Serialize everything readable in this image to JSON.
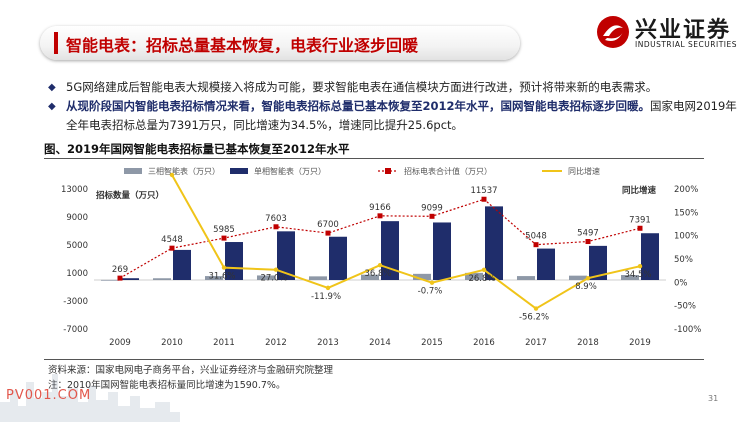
{
  "header": {
    "title": "智能电表：招标总量基本恢复，电表行业逐步回暖",
    "logo_cn": "兴业证券",
    "logo_en": "INDUSTRIAL SECURITIES"
  },
  "bullets": [
    {
      "plain": "5G网络建成后智能电表大规模接入将成为可能，要求智能电表在通信模块方面进行改进，预计将带来新的电表需求。"
    },
    {
      "bold": "从现阶段国内智能电表招标情况来看，智能电表招标总量已基本恢复至2012年水平，国网智能电表招标逐步回暖。",
      "plain": "国家电网2019年全年电表招标总量为7391万只，同比增速为34.5%，增速同比提升25.6pct。"
    }
  ],
  "figure_title": "图、2019年国网智能电表招标量已基本恢复至2012年水平",
  "source": "资料来源：国家电网电子商务平台，兴业证券经济与金融研究院整理",
  "footnote": "注：2010年国网智能电表招标量同比增速为1590.7%。",
  "watermark": "PV001.COM",
  "page_number": "31",
  "colors": {
    "three_phase": "#8e98a7",
    "single_phase": "#1f2d6b",
    "total": "#c00000",
    "growth": "#f0c419",
    "accent": "#c00000"
  },
  "chart_data": {
    "type": "bar",
    "categories": [
      "2009",
      "2010",
      "2011",
      "2012",
      "2013",
      "2014",
      "2015",
      "2016",
      "2017",
      "2018",
      "2019"
    ],
    "ylim": [
      -7000,
      13000
    ],
    "yticks": [
      "13000",
      "9000",
      "5000",
      "1000",
      "-3000",
      "-7000"
    ],
    "y2lim": [
      -100,
      200
    ],
    "y2ticks": [
      "200%",
      "150%",
      "100%",
      "50%",
      "0%",
      "-50%",
      "-100%"
    ],
    "left_axis_label": "招标数量（万只）",
    "right_axis_label": "同比增速",
    "series": [
      {
        "name": "三相智能表（万只）",
        "type": "bar",
        "values": [
          15,
          250,
          560,
          650,
          520,
          760,
          880,
          1020,
          560,
          620,
          710
        ]
      },
      {
        "name": "单相智能表（万只）",
        "type": "bar",
        "values": [
          254,
          4298,
          5425,
          6953,
          6180,
          8406,
          8219,
          10517,
          4488,
          4877,
          6681
        ]
      },
      {
        "name": "招标电表合计值（万只）",
        "type": "line",
        "values": [
          269,
          4548,
          5985,
          7603,
          6700,
          9166,
          9099,
          11537,
          5048,
          5497,
          7391
        ]
      },
      {
        "name": "同比增速",
        "type": "line",
        "values": [
          null,
          1590.7,
          31.6,
          27.0,
          -11.9,
          36.8,
          -0.7,
          26.8,
          -56.2,
          8.9,
          34.5
        ]
      }
    ],
    "total_labels": [
      "269",
      "4548",
      "5985",
      "7603",
      "6700",
      "9166",
      "9099",
      "11537",
      "5048",
      "5497",
      "7391"
    ],
    "growth_labels": [
      "",
      "",
      "31.6%",
      "27.0%",
      "-11.9%",
      "36.8%",
      "-0.7%",
      "26.8%",
      "-56.2%",
      "8.9%",
      "34.5%"
    ]
  }
}
